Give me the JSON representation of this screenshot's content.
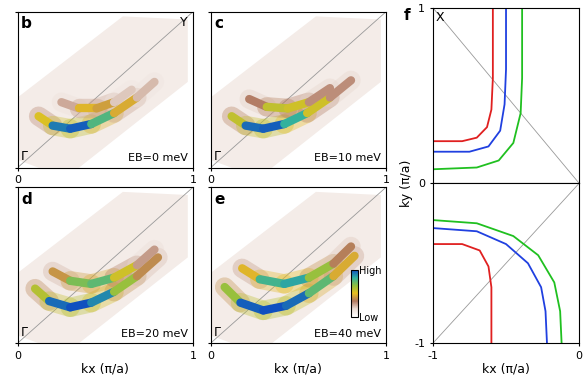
{
  "chart_data": [
    {
      "type": "map",
      "panel": "b",
      "energy_label": "EB=0 meV",
      "corner_labels": {
        "top_right": "Y",
        "bottom_left": "Γ"
      },
      "xlim": [
        0,
        1
      ],
      "ylim": [
        0,
        1
      ],
      "xticks": [
        0,
        1
      ],
      "yticks": [
        0,
        1
      ],
      "tick_labels": "x",
      "measured_region": [
        [
          0,
          0.05
        ],
        [
          0.12,
          0
        ],
        [
          0.35,
          0
        ],
        [
          0.97,
          0.55
        ],
        [
          0.97,
          0.95
        ],
        [
          0.6,
          0.97
        ],
        [
          0,
          0.45
        ]
      ],
      "bands": [
        {
          "x": [
            0.12,
            0.2,
            0.3,
            0.42,
            0.55,
            0.68,
            0.78
          ],
          "y": [
            0.33,
            0.27,
            0.25,
            0.28,
            0.35,
            0.45,
            0.55
          ],
          "intensity": [
            0.2,
            0.85,
            1.0,
            0.95,
            0.6,
            0.3,
            0.15
          ]
        },
        {
          "x": [
            0.25,
            0.35,
            0.45,
            0.55,
            0.65
          ],
          "y": [
            0.42,
            0.38,
            0.38,
            0.42,
            0.5
          ],
          "intensity": [
            0.1,
            0.4,
            0.55,
            0.3,
            0.1
          ]
        }
      ]
    },
    {
      "type": "map",
      "panel": "c",
      "energy_label": "EB=10 meV",
      "corner_labels": {
        "bottom_left": "Γ"
      },
      "xlim": [
        0,
        1
      ],
      "ylim": [
        0,
        1
      ],
      "xticks": [
        0,
        1
      ],
      "yticks": [
        0,
        1
      ],
      "tick_labels": "x",
      "measured_region": [
        [
          0,
          0.05
        ],
        [
          0.12,
          0
        ],
        [
          0.35,
          0
        ],
        [
          0.97,
          0.55
        ],
        [
          0.97,
          0.95
        ],
        [
          0.6,
          0.97
        ],
        [
          0,
          0.45
        ]
      ],
      "bands": [
        {
          "x": [
            0.12,
            0.2,
            0.3,
            0.42,
            0.55,
            0.68,
            0.8
          ],
          "y": [
            0.33,
            0.27,
            0.25,
            0.28,
            0.35,
            0.45,
            0.56
          ],
          "intensity": [
            0.25,
            0.9,
            1.0,
            0.95,
            0.7,
            0.4,
            0.2
          ]
        },
        {
          "x": [
            0.22,
            0.32,
            0.44,
            0.56,
            0.68
          ],
          "y": [
            0.44,
            0.39,
            0.38,
            0.42,
            0.51
          ],
          "intensity": [
            0.15,
            0.5,
            0.65,
            0.45,
            0.15
          ]
        }
      ]
    },
    {
      "type": "map",
      "panel": "d",
      "energy_label": "EB=20 meV",
      "corner_labels": {
        "bottom_left": "Γ"
      },
      "xlim": [
        0,
        1
      ],
      "ylim": [
        0,
        1
      ],
      "xticks": [
        0,
        1
      ],
      "yticks": [
        0,
        1
      ],
      "tick_labels": "x",
      "xlabel": "kx (π/a)",
      "measured_region": [
        [
          0,
          0.05
        ],
        [
          0.12,
          0
        ],
        [
          0.35,
          0
        ],
        [
          0.97,
          0.55
        ],
        [
          0.97,
          0.95
        ],
        [
          0.6,
          0.97
        ],
        [
          0,
          0.45
        ]
      ],
      "bands": [
        {
          "x": [
            0.1,
            0.18,
            0.3,
            0.42,
            0.55,
            0.68,
            0.8
          ],
          "y": [
            0.35,
            0.27,
            0.23,
            0.26,
            0.33,
            0.43,
            0.55
          ],
          "intensity": [
            0.3,
            0.9,
            1.0,
            1.0,
            0.8,
            0.5,
            0.25
          ]
        },
        {
          "x": [
            0.2,
            0.3,
            0.42,
            0.55,
            0.68,
            0.78
          ],
          "y": [
            0.46,
            0.4,
            0.38,
            0.42,
            0.5,
            0.6
          ],
          "intensity": [
            0.2,
            0.6,
            0.8,
            0.7,
            0.4,
            0.15
          ]
        }
      ]
    },
    {
      "type": "map",
      "panel": "e",
      "energy_label": "EB=40 meV",
      "corner_labels": {
        "bottom_left": "Γ"
      },
      "xlim": [
        0,
        1
      ],
      "ylim": [
        0,
        1
      ],
      "xticks": [
        0,
        1
      ],
      "yticks": [
        0,
        1
      ],
      "tick_labels": "x",
      "xlabel": "kx (π/a)",
      "measured_region": [
        [
          0,
          0.05
        ],
        [
          0.12,
          0
        ],
        [
          0.35,
          0
        ],
        [
          0.97,
          0.55
        ],
        [
          0.97,
          0.95
        ],
        [
          0.6,
          0.97
        ],
        [
          0,
          0.45
        ]
      ],
      "colorbar": {
        "range": [
          0,
          1
        ],
        "ticks": [
          {
            "value": 0,
            "label": "Low"
          },
          {
            "value": 1,
            "label": "High"
          }
        ]
      },
      "bands": [
        {
          "x": [
            0.08,
            0.17,
            0.3,
            0.43,
            0.56,
            0.7,
            0.82
          ],
          "y": [
            0.36,
            0.26,
            0.21,
            0.24,
            0.32,
            0.43,
            0.56
          ],
          "intensity": [
            0.35,
            0.95,
            1.0,
            1.0,
            0.9,
            0.6,
            0.3
          ]
        },
        {
          "x": [
            0.18,
            0.28,
            0.42,
            0.56,
            0.7,
            0.8
          ],
          "y": [
            0.48,
            0.41,
            0.38,
            0.42,
            0.51,
            0.62
          ],
          "intensity": [
            0.25,
            0.7,
            0.9,
            0.8,
            0.5,
            0.2
          ]
        }
      ]
    },
    {
      "type": "line",
      "panel": "f",
      "corner_labels": {
        "top_left": "X"
      },
      "ylabel": "ky (π/a)",
      "xlim": [
        -1,
        0
      ],
      "ylim": [
        0,
        1
      ],
      "xticks": [],
      "yticks": [
        0,
        1
      ],
      "tick_labels": "y",
      "series": [
        {
          "color": "#e02020",
          "x": [
            -1,
            -0.8,
            -0.7,
            -0.63,
            -0.6,
            -0.59,
            -0.59
          ],
          "values": [
            0.24,
            0.24,
            0.26,
            0.32,
            0.42,
            0.6,
            1.0
          ]
        },
        {
          "color": "#2040e0",
          "x": [
            -1,
            -0.75,
            -0.62,
            -0.54,
            -0.51,
            -0.5,
            -0.5
          ],
          "values": [
            0.18,
            0.18,
            0.21,
            0.3,
            0.45,
            0.65,
            1.0
          ]
        },
        {
          "color": "#20c020",
          "x": [
            -1,
            -0.7,
            -0.55,
            -0.45,
            -0.4,
            -0.39,
            -0.39
          ],
          "values": [
            0.08,
            0.09,
            0.13,
            0.23,
            0.4,
            0.6,
            1.0
          ]
        }
      ]
    },
    {
      "type": "line",
      "xlabel": "kx (π/a)",
      "xlim": [
        -1,
        0
      ],
      "ylim": [
        -1,
        0
      ],
      "xticks": [
        -1,
        0
      ],
      "yticks": [
        -1
      ],
      "series": [
        {
          "color": "#e02020",
          "x": [
            -1,
            -0.8,
            -0.68,
            -0.62,
            -0.6,
            -0.6
          ],
          "values": [
            -0.38,
            -0.38,
            -0.42,
            -0.52,
            -0.65,
            -1.0
          ]
        },
        {
          "color": "#2040e0",
          "x": [
            -1,
            -0.7,
            -0.5,
            -0.35,
            -0.26,
            -0.23,
            -0.22
          ],
          "values": [
            -0.28,
            -0.3,
            -0.38,
            -0.5,
            -0.65,
            -0.8,
            -1.0
          ]
        },
        {
          "color": "#20c020",
          "x": [
            -1,
            -0.7,
            -0.45,
            -0.28,
            -0.17,
            -0.13,
            -0.12
          ],
          "values": [
            -0.23,
            -0.25,
            -0.33,
            -0.45,
            -0.62,
            -0.8,
            -1.0
          ]
        }
      ]
    }
  ]
}
